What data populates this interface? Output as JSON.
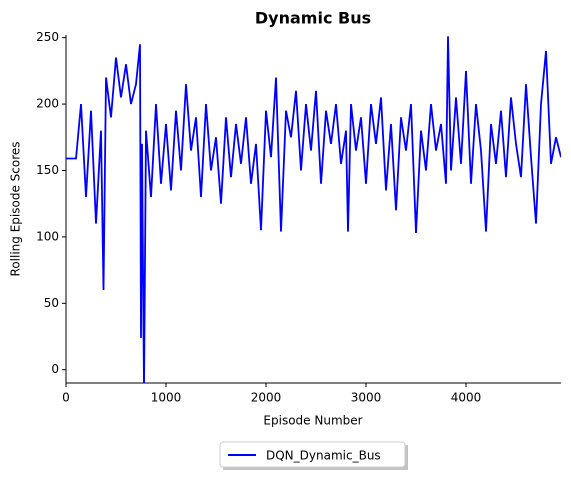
{
  "chart_data": {
    "type": "line",
    "title": "Dynamic Bus",
    "xlabel": "Episode Number",
    "ylabel": "Rolling Episode Scores",
    "x": [
      0,
      100,
      150,
      200,
      250,
      300,
      350,
      375,
      400,
      450,
      500,
      550,
      600,
      650,
      700,
      740,
      750,
      760,
      780,
      800,
      850,
      900,
      950,
      1000,
      1050,
      1100,
      1150,
      1200,
      1250,
      1300,
      1350,
      1400,
      1450,
      1500,
      1550,
      1600,
      1650,
      1700,
      1750,
      1800,
      1850,
      1900,
      1950,
      2000,
      2050,
      2100,
      2150,
      2200,
      2250,
      2300,
      2350,
      2400,
      2450,
      2500,
      2550,
      2600,
      2650,
      2700,
      2750,
      2800,
      2820,
      2850,
      2900,
      2950,
      3000,
      3050,
      3100,
      3150,
      3200,
      3250,
      3300,
      3350,
      3400,
      3450,
      3500,
      3550,
      3600,
      3650,
      3700,
      3750,
      3800,
      3820,
      3850,
      3900,
      3950,
      4000,
      4050,
      4100,
      4150,
      4200,
      4250,
      4300,
      4350,
      4400,
      4450,
      4500,
      4550,
      4600,
      4650,
      4700,
      4750,
      4800,
      4850,
      4900,
      4950
    ],
    "series": [
      {
        "name": "DQN_Dynamic_Bus",
        "color": "#0000ff",
        "values": [
          159,
          159,
          200,
          130,
          195,
          110,
          180,
          60,
          220,
          190,
          235,
          205,
          230,
          200,
          215,
          245,
          24,
          170,
          -15,
          180,
          130,
          200,
          140,
          185,
          135,
          195,
          150,
          215,
          165,
          190,
          130,
          200,
          150,
          175,
          125,
          190,
          145,
          185,
          155,
          190,
          140,
          170,
          105,
          195,
          160,
          220,
          104,
          195,
          175,
          210,
          150,
          200,
          165,
          210,
          140,
          195,
          170,
          200,
          155,
          180,
          104,
          200,
          165,
          190,
          140,
          200,
          170,
          205,
          135,
          185,
          120,
          190,
          165,
          200,
          103,
          180,
          150,
          200,
          165,
          185,
          140,
          251,
          150,
          205,
          155,
          225,
          140,
          200,
          165,
          104,
          185,
          155,
          195,
          145,
          205,
          170,
          145,
          215,
          160,
          110,
          200,
          240,
          155,
          175,
          160
        ]
      }
    ],
    "xlim": [
      0,
      4950
    ],
    "ylim": [
      -10,
      252
    ],
    "xticks": [
      0,
      1000,
      2000,
      3000,
      4000
    ],
    "yticks": [
      0,
      50,
      100,
      150,
      200,
      250
    ]
  }
}
